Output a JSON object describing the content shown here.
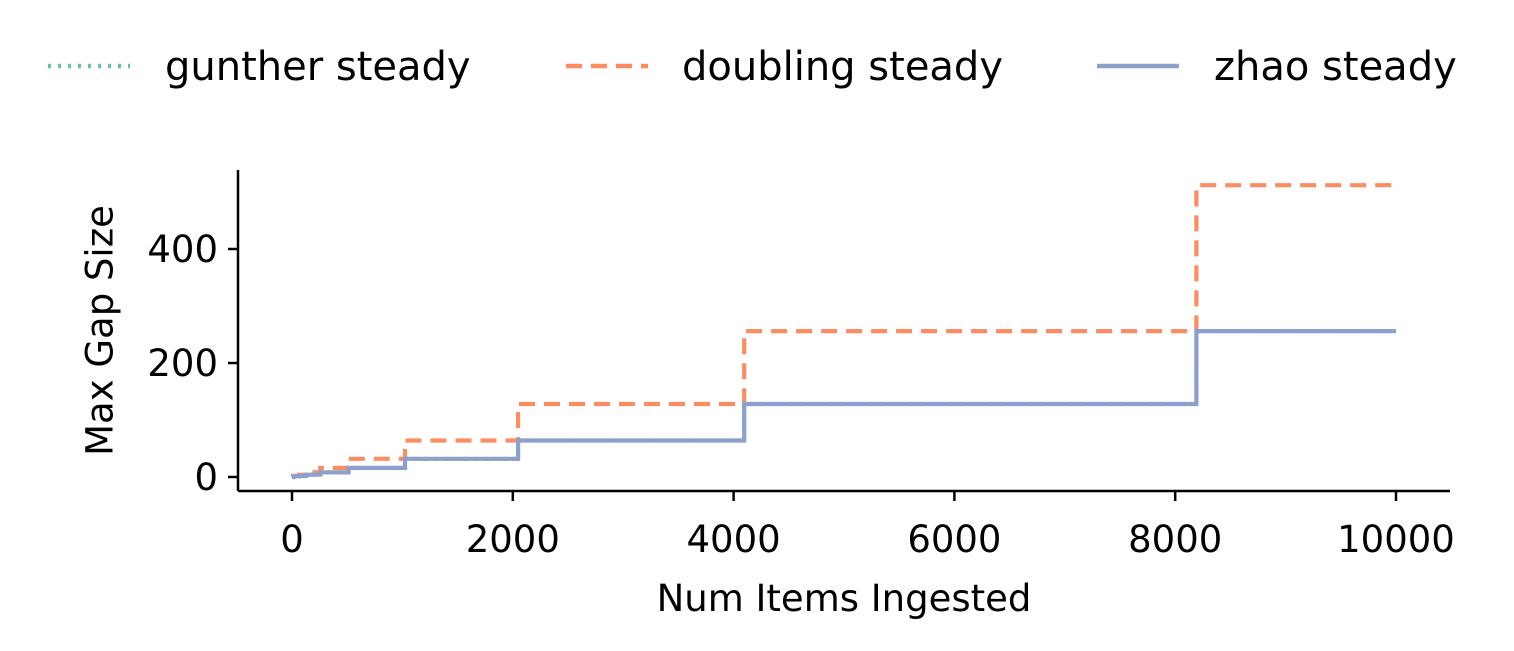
{
  "chart_data": {
    "type": "line",
    "title": "",
    "xlabel": "Num Items Ingested",
    "ylabel": "Max Gap Size",
    "xlim": [
      -500,
      10500
    ],
    "ylim": [
      -30,
      540
    ],
    "x_ticks": [
      0,
      2000,
      4000,
      6000,
      8000,
      10000
    ],
    "y_ticks": [
      0,
      200,
      400
    ],
    "grid": false,
    "legend_position": "top",
    "series": [
      {
        "name": "gunther steady",
        "color": "#66c2a5",
        "line_style": "dotted",
        "points": [
          [
            0,
            1
          ],
          [
            50,
            2
          ],
          [
            128,
            4
          ],
          [
            256,
            8
          ],
          [
            512,
            16
          ],
          [
            1024,
            32
          ],
          [
            2000,
            32
          ],
          [
            2048,
            64
          ],
          [
            4000,
            64
          ],
          [
            4096,
            128
          ],
          [
            8050,
            128
          ],
          [
            8192,
            256
          ],
          [
            10000,
            256
          ]
        ]
      },
      {
        "name": "doubling steady",
        "color": "#fc8d62",
        "line_style": "dashed",
        "points": [
          [
            0,
            0
          ],
          [
            10,
            2
          ],
          [
            64,
            4
          ],
          [
            128,
            8
          ],
          [
            256,
            16
          ],
          [
            512,
            32
          ],
          [
            1024,
            64
          ],
          [
            2048,
            128
          ],
          [
            4096,
            256
          ],
          [
            8192,
            512
          ],
          [
            10000,
            512
          ]
        ]
      },
      {
        "name": "zhao steady",
        "color": "#8da0cb",
        "line_style": "solid",
        "points": [
          [
            0,
            0
          ],
          [
            10,
            1
          ],
          [
            64,
            2
          ],
          [
            128,
            4
          ],
          [
            256,
            8
          ],
          [
            512,
            16
          ],
          [
            1024,
            32
          ],
          [
            2048,
            64
          ],
          [
            4096,
            128
          ],
          [
            8192,
            256
          ],
          [
            10000,
            256
          ]
        ]
      }
    ]
  }
}
